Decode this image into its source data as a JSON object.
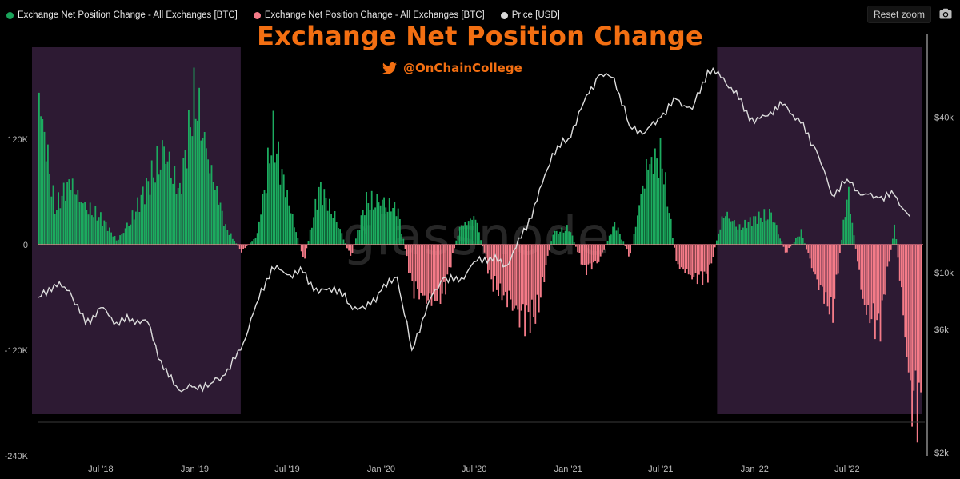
{
  "legend": [
    {
      "label": "Exchange Net Position Change - All Exchanges [BTC]",
      "color": "#19a35a"
    },
    {
      "label": "Exchange Net Position Change - All Exchanges [BTC]",
      "color": "#f47b88"
    },
    {
      "label": "Price [USD]",
      "color": "#d9d9d9"
    }
  ],
  "title": "Exchange Net Position Change",
  "credit": "@OnChainCollege",
  "reset_zoom": "Reset zoom",
  "watermark": "glassnode",
  "colors": {
    "background": "#000000",
    "positive": "#1cab5f",
    "negative": "#f47b88",
    "price": "#dcdcdc",
    "highlight": "#2d1a33",
    "accent": "#f36f12"
  },
  "chart_data": {
    "type": "bar",
    "x_start": "2018-03",
    "x_end": "2022-11",
    "x_ticks": [
      "Jul '18",
      "Jan '19",
      "Jul '19",
      "Jan '20",
      "Jul '20",
      "Jan '21",
      "Jul '21",
      "Jan '22",
      "Jul '22"
    ],
    "y_left": {
      "label": "",
      "unit": "BTC",
      "ticks": [
        "120K",
        "0",
        "-120K",
        "-240K"
      ],
      "ylim": [
        -240000,
        160000
      ]
    },
    "y_right": {
      "label": "",
      "unit": "USD",
      "scale": "log",
      "ticks": [
        "$40k",
        "$10k",
        "$6k",
        "$2k"
      ],
      "ylim": [
        2000,
        60000
      ]
    },
    "highlighted_periods": [
      {
        "start": "2018-03",
        "end": "2019-04"
      },
      {
        "start": "2021-11",
        "end": "2022-11"
      }
    ],
    "series": [
      {
        "name": "Exchange Net Position Change - All Exchanges [BTC]",
        "kind": "bar",
        "dates": [
          "2018-03",
          "2018-04",
          "2018-05",
          "2018-06",
          "2018-07",
          "2018-08",
          "2018-09",
          "2018-10",
          "2018-11",
          "2018-12",
          "2019-01",
          "2019-02",
          "2019-03",
          "2019-04",
          "2019-05",
          "2019-06",
          "2019-07",
          "2019-08",
          "2019-09",
          "2019-10",
          "2019-11",
          "2019-12",
          "2020-01",
          "2020-02",
          "2020-03",
          "2020-04",
          "2020-05",
          "2020-06",
          "2020-07",
          "2020-08",
          "2020-09",
          "2020-10",
          "2020-11",
          "2020-12",
          "2021-01",
          "2021-02",
          "2021-03",
          "2021-04",
          "2021-05",
          "2021-06",
          "2021-07",
          "2021-08",
          "2021-09",
          "2021-10",
          "2021-11",
          "2021-12",
          "2022-01",
          "2022-02",
          "2022-03",
          "2022-04",
          "2022-05",
          "2022-06",
          "2022-07",
          "2022-08",
          "2022-09",
          "2022-10",
          "2022-11"
        ],
        "values": [
          175000,
          40000,
          75000,
          45000,
          30000,
          5000,
          35000,
          70000,
          120000,
          60000,
          175000,
          90000,
          20000,
          -8000,
          10000,
          125000,
          55000,
          -20000,
          65000,
          35000,
          -15000,
          50000,
          55000,
          40000,
          -50000,
          -70000,
          -55000,
          20000,
          35000,
          -40000,
          -65000,
          -90000,
          -75000,
          15000,
          20000,
          -30000,
          -20000,
          25000,
          -15000,
          95000,
          100000,
          -25000,
          -40000,
          -35000,
          40000,
          20000,
          30000,
          40000,
          -10000,
          15000,
          -45000,
          -80000,
          65000,
          -75000,
          -95000,
          25000,
          -185000
        ]
      },
      {
        "name": "Price [USD]",
        "kind": "line",
        "dates": [
          "2018-03",
          "2018-04",
          "2018-05",
          "2018-06",
          "2018-07",
          "2018-08",
          "2018-09",
          "2018-10",
          "2018-11",
          "2018-12",
          "2019-01",
          "2019-02",
          "2019-03",
          "2019-04",
          "2019-05",
          "2019-06",
          "2019-07",
          "2019-08",
          "2019-09",
          "2019-10",
          "2019-11",
          "2019-12",
          "2020-01",
          "2020-02",
          "2020-03",
          "2020-04",
          "2020-05",
          "2020-06",
          "2020-07",
          "2020-08",
          "2020-09",
          "2020-10",
          "2020-11",
          "2020-12",
          "2021-01",
          "2021-02",
          "2021-03",
          "2021-04",
          "2021-05",
          "2021-06",
          "2021-07",
          "2021-08",
          "2021-09",
          "2021-10",
          "2021-11",
          "2021-12",
          "2022-01",
          "2022-02",
          "2022-03",
          "2022-04",
          "2022-05",
          "2022-06",
          "2022-07",
          "2022-08",
          "2022-09",
          "2022-10",
          "2022-11"
        ],
        "values": [
          8000,
          9000,
          8500,
          6300,
          7300,
          6400,
          6600,
          6400,
          4200,
          3500,
          3600,
          3700,
          4000,
          5000,
          7500,
          10500,
          9800,
          10000,
          8300,
          8800,
          7500,
          7200,
          8500,
          9600,
          5000,
          7500,
          9500,
          9200,
          11000,
          11500,
          10600,
          13600,
          19000,
          29000,
          33000,
          46000,
          58000,
          57000,
          37000,
          35000,
          40000,
          47000,
          43000,
          61000,
          57000,
          47000,
          38000,
          42000,
          45000,
          38000,
          30000,
          20000,
          23000,
          20000,
          19500,
          20000,
          16500
        ]
      }
    ]
  }
}
